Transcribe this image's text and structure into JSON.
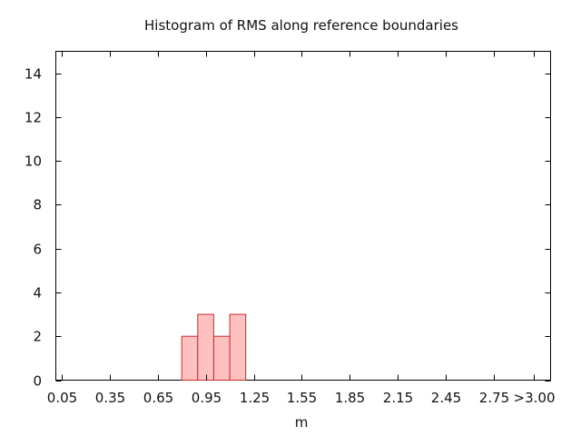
{
  "chart_data": {
    "type": "bar",
    "title": "Histogram of RMS along reference boundaries",
    "xlabel": "m",
    "ylabel": "",
    "xlim": [
      0.0,
      3.15
    ],
    "ylim": [
      0,
      15
    ],
    "yticks": [
      0,
      2,
      4,
      6,
      8,
      10,
      12,
      14
    ],
    "xticks": [
      {
        "value": 0.05,
        "label": "0.05"
      },
      {
        "value": 0.35,
        "label": "0.35"
      },
      {
        "value": 0.65,
        "label": "0.65"
      },
      {
        "value": 0.95,
        "label": "0.95"
      },
      {
        "value": 1.25,
        "label": "1.25"
      },
      {
        "value": 1.55,
        "label": "1.55"
      },
      {
        "value": 1.85,
        "label": "1.85"
      },
      {
        "value": 2.15,
        "label": "2.15"
      },
      {
        "value": 2.45,
        "label": "2.45"
      },
      {
        "value": 2.75,
        "label": "2.75"
      },
      {
        "value": 3.0,
        "label": ">3.00"
      }
    ],
    "bin_width": 0.1,
    "bins": [
      {
        "x0": 0.8,
        "x1": 0.9,
        "count": 2
      },
      {
        "x0": 0.9,
        "x1": 1.0,
        "count": 3
      },
      {
        "x0": 1.0,
        "x1": 1.1,
        "count": 2
      },
      {
        "x0": 1.1,
        "x1": 1.2,
        "count": 3
      }
    ],
    "bar_fill": "#ffc0c0",
    "bar_stroke": "#cc2a2a",
    "grid": false,
    "legend": "none"
  }
}
